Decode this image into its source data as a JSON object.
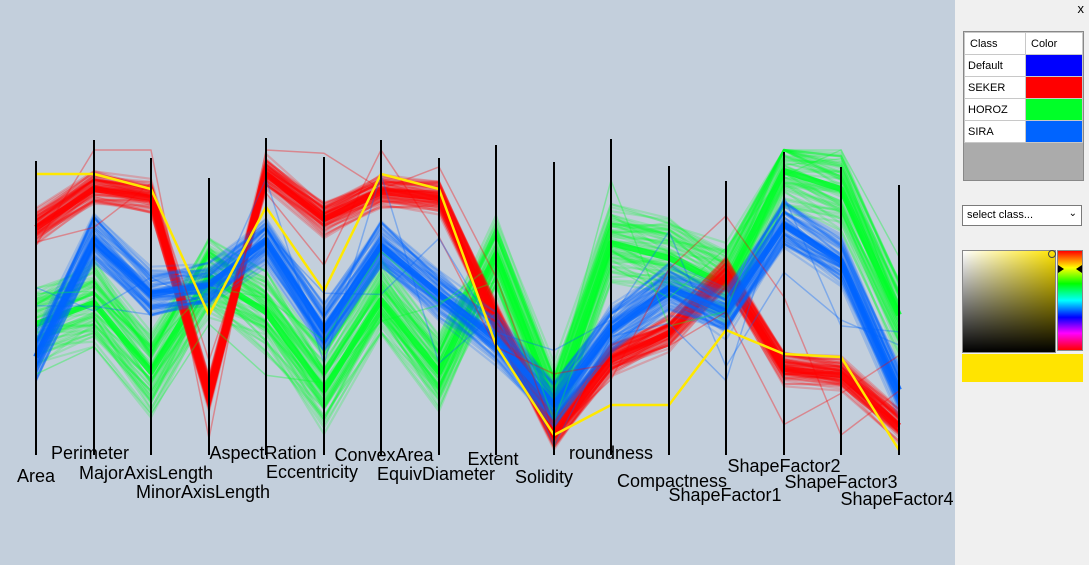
{
  "panel": {
    "close_label": "x",
    "table_header_class": "Class",
    "table_header_color": "Color",
    "classes": [
      {
        "name": "Default",
        "color": "#0000ff"
      },
      {
        "name": "SEKER",
        "color": "#ff0000"
      },
      {
        "name": "HOROZ",
        "color": "#00ff28"
      },
      {
        "name": "SIRA",
        "color": "#0064ff"
      }
    ],
    "select_placeholder": "select class...",
    "selected_color": "#ffe400"
  },
  "chart_data": {
    "type": "parallel-coordinates",
    "axes": [
      "Area",
      "Perimeter",
      "MajorAxisLength",
      "MinorAxisLength",
      "AspectRation",
      "Eccentricity",
      "ConvexArea",
      "EquivDiameter",
      "Extent",
      "Solidity",
      "roundness",
      "Compactness",
      "ShapeFactor1",
      "ShapeFactor2",
      "ShapeFactor3",
      "ShapeFactor4"
    ],
    "value_scale": "normalized 0-1 per axis (bottom=0, top=1)",
    "series": [
      {
        "name": "HOROZ",
        "color": "#00ff28",
        "values": [
          0.42,
          0.49,
          0.26,
          0.58,
          0.46,
          0.2,
          0.5,
          0.26,
          0.65,
          0.15,
          0.69,
          0.64,
          0.55,
          0.93,
          0.87,
          0.45
        ]
      },
      {
        "name": "SEKER",
        "color": "#ff0000",
        "values": [
          0.74,
          0.87,
          0.84,
          0.18,
          0.92,
          0.77,
          0.86,
          0.84,
          0.43,
          0.05,
          0.3,
          0.39,
          0.58,
          0.27,
          0.25,
          0.08
        ]
      },
      {
        "name": "SIRA",
        "color": "#0064ff",
        "values": [
          0.31,
          0.7,
          0.52,
          0.55,
          0.7,
          0.4,
          0.68,
          0.52,
          0.37,
          0.15,
          0.4,
          0.54,
          0.46,
          0.75,
          0.63,
          0.2
        ]
      }
    ],
    "highlight": {
      "color": "#ffe800",
      "values": [
        0.92,
        0.92,
        0.87,
        0.45,
        0.81,
        0.53,
        0.92,
        0.87,
        0.35,
        0.05,
        0.15,
        0.15,
        0.4,
        0.32,
        0.31,
        0.0
      ]
    },
    "legend": "side-panel"
  }
}
